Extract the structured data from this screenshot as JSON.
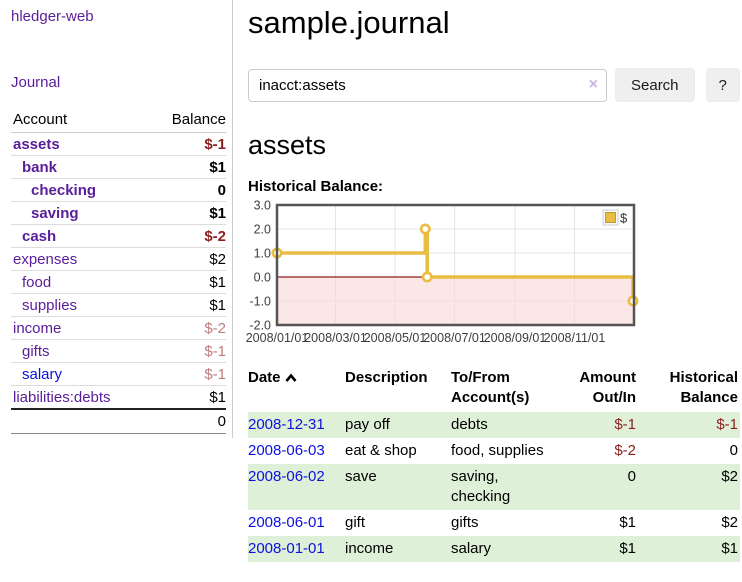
{
  "palette": {
    "purple": "#5a1d9a",
    "linkBlue": "#0d11dd",
    "negStrong": "#8c1f1f",
    "negSoft": "#c17d7d",
    "rowGreen": "#dff0d8",
    "btnBg": "#efefef",
    "clearIcon": "#c9b5da"
  },
  "sidebar": {
    "brand": "hledger-web",
    "nav": {
      "journal": "Journal"
    },
    "table": {
      "headers": [
        "Account",
        "Balance"
      ],
      "rows": [
        {
          "name": "assets",
          "depth": 1,
          "bold": true,
          "balance": "$-1",
          "balance_tone": "neg"
        },
        {
          "name": "bank",
          "depth": 2,
          "bold": true,
          "balance": "$1",
          "balance_tone": ""
        },
        {
          "name": "checking",
          "depth": 3,
          "bold": true,
          "balance": "0",
          "balance_tone": ""
        },
        {
          "name": "saving",
          "depth": 3,
          "bold": true,
          "balance": "$1",
          "balance_tone": ""
        },
        {
          "name": "cash",
          "depth": 2,
          "bold": true,
          "balance": "$-2",
          "balance_tone": "neg"
        },
        {
          "name": "expenses",
          "depth": 1,
          "bold": false,
          "balance": "$2",
          "balance_tone": ""
        },
        {
          "name": "food",
          "depth": 2,
          "bold": false,
          "balance": "$1",
          "balance_tone": ""
        },
        {
          "name": "supplies",
          "depth": 2,
          "bold": false,
          "balance": "$1",
          "balance_tone": ""
        },
        {
          "name": "income",
          "depth": 1,
          "bold": false,
          "balance": "$-2",
          "balance_tone": "neg-soft"
        },
        {
          "name": "gifts",
          "depth": 2,
          "bold": false,
          "balance": "$-1",
          "balance_tone": "neg-soft"
        },
        {
          "name": "salary",
          "depth": 2,
          "bold": false,
          "balance": "$-1",
          "balance_tone": "neg-soft",
          "link_tone": "blue"
        },
        {
          "name": "liabilities:debts",
          "depth": 1,
          "bold": false,
          "balance": "$1",
          "balance_tone": ""
        }
      ],
      "total": "0"
    }
  },
  "main": {
    "title": "sample.journal",
    "search": {
      "value": "inacct:assets",
      "clear_icon": "×",
      "button": "Search",
      "help": "?"
    },
    "account_heading": "assets",
    "chart_heading": "Historical Balance:",
    "register": {
      "headers": [
        "Date",
        "Description",
        "To/From Account(s)",
        "Amount Out/In",
        "Historical Balance"
      ],
      "rows": [
        {
          "date": "2008-12-31",
          "description": "pay off",
          "accounts": "debts",
          "amount": "$-1",
          "amount_tone": "neg",
          "balance": "$-1",
          "balance_tone": "neg",
          "shaded": true
        },
        {
          "date": "2008-06-03",
          "description": "eat & shop",
          "accounts": "food, supplies",
          "amount": "$-2",
          "amount_tone": "neg",
          "balance": "0",
          "balance_tone": "",
          "shaded": false
        },
        {
          "date": "2008-06-02",
          "description": "save",
          "accounts": "saving, checking",
          "amount": "0",
          "amount_tone": "",
          "balance": "$2",
          "balance_tone": "",
          "shaded": true
        },
        {
          "date": "2008-06-01",
          "description": "gift",
          "accounts": "gifts",
          "amount": "$1",
          "amount_tone": "",
          "balance": "$2",
          "balance_tone": "",
          "shaded": false
        },
        {
          "date": "2008-01-01",
          "description": "income",
          "accounts": "salary",
          "amount": "$1",
          "amount_tone": "",
          "balance": "$1",
          "balance_tone": "",
          "shaded": true
        }
      ]
    }
  },
  "chart_data": {
    "type": "line",
    "step": true,
    "title": "Historical Balance",
    "series": [
      {
        "name": "$",
        "color": "#e8bd41",
        "points": [
          [
            "2008-01-01",
            1
          ],
          [
            "2008-06-01",
            2
          ],
          [
            "2008-06-03",
            0
          ],
          [
            "2008-12-31",
            -1
          ]
        ]
      }
    ],
    "xlim": [
      "2008-01-01",
      "2009-01-01"
    ],
    "ylim": [
      -2,
      3
    ],
    "y_ticks": [
      "3.0",
      "2.0",
      "1.0",
      "0.0",
      "-1.0",
      "-2.0"
    ],
    "x_ticks": [
      "2008/01/01",
      "2008/03/01",
      "2008/05/01",
      "2008/07/01",
      "2008/09/01",
      "2008/11/01"
    ],
    "legend": {
      "label": "$",
      "position": "top-right"
    },
    "grid": true,
    "negative_region_color": "#fad9d9",
    "zero_line_color": "#8b1a1a",
    "axis_border_color": "#555555",
    "gridline_color": "#e4e4e4"
  }
}
